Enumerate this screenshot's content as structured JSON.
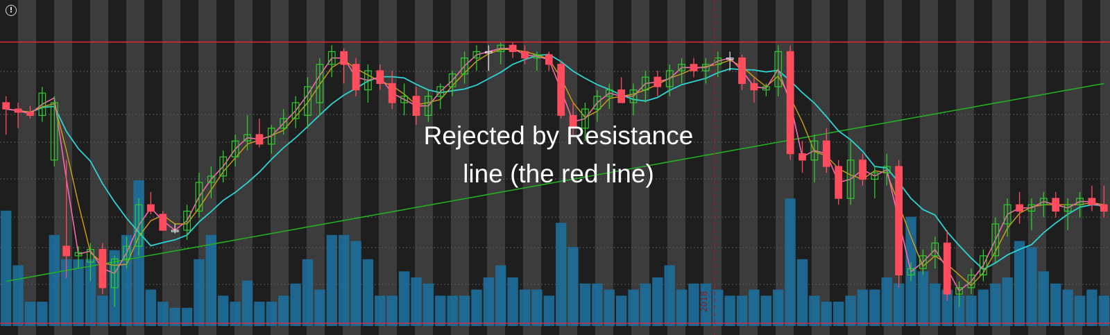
{
  "annotation": {
    "line1": "Rejected by Resistance",
    "line2": "line (the red line)"
  },
  "alert_icon": "!",
  "date_marker": "2018",
  "colors": {
    "up_candle": "#2ecc2e",
    "down_candle": "#ff4d5e",
    "neutral_candle": "#d9d9d9",
    "volume": "#1c6e9c",
    "resistance": "#e0283c",
    "ma_cyan": "#2fd4d4",
    "ma_green": "#23b023",
    "ma_pink": "#ff66aa",
    "ma_violet": "#c46ad4",
    "ma_gold": "#d4a017",
    "stripe_dark": "#1e1e1e",
    "stripe_light": "#3c3c3c"
  },
  "chart_data": {
    "type": "candlestick",
    "title": "",
    "xlabel": "",
    "ylabel": "",
    "ylim": [
      0,
      100
    ],
    "grid": true,
    "resistance_level": 89,
    "candles": [
      [
        70,
        72,
        60,
        68
      ],
      [
        68,
        70,
        62,
        67
      ],
      [
        67,
        69,
        65,
        66
      ],
      [
        66,
        75,
        64,
        73
      ],
      [
        52,
        72,
        50,
        70
      ],
      [
        25,
        52,
        15,
        22
      ],
      [
        22,
        25,
        18,
        23
      ],
      [
        20,
        26,
        14,
        24
      ],
      [
        24,
        26,
        10,
        12
      ],
      [
        12,
        22,
        6,
        21
      ],
      [
        21,
        28,
        18,
        25
      ],
      [
        25,
        40,
        22,
        38
      ],
      [
        38,
        42,
        35,
        36
      ],
      [
        35,
        36,
        30,
        30
      ],
      [
        30,
        32,
        29,
        30
      ],
      [
        30,
        38,
        27,
        36
      ],
      [
        36,
        48,
        34,
        45
      ],
      [
        45,
        50,
        40,
        47
      ],
      [
        47,
        55,
        45,
        53
      ],
      [
        53,
        60,
        50,
        58
      ],
      [
        58,
        66,
        55,
        60
      ],
      [
        60,
        65,
        56,
        57
      ],
      [
        57,
        63,
        54,
        62
      ],
      [
        62,
        68,
        60,
        65
      ],
      [
        65,
        72,
        62,
        70
      ],
      [
        66,
        78,
        62,
        75
      ],
      [
        70,
        84,
        66,
        82
      ],
      [
        82,
        88,
        78,
        86
      ],
      [
        86,
        87,
        76,
        82
      ],
      [
        82,
        84,
        72,
        74
      ],
      [
        74,
        82,
        70,
        80
      ],
      [
        80,
        82,
        74,
        76
      ],
      [
        76,
        80,
        68,
        70
      ],
      [
        70,
        76,
        66,
        72
      ],
      [
        72,
        75,
        63,
        66
      ],
      [
        66,
        74,
        64,
        72
      ],
      [
        72,
        76,
        68,
        75
      ],
      [
        75,
        80,
        72,
        79
      ],
      [
        79,
        86,
        76,
        84
      ],
      [
        84,
        88,
        80,
        86
      ],
      [
        86,
        88,
        80,
        86
      ],
      [
        86,
        89,
        82,
        88
      ],
      [
        88,
        89,
        84,
        86
      ],
      [
        86,
        88,
        82,
        84
      ],
      [
        84,
        86,
        80,
        85
      ],
      [
        85,
        86,
        80,
        82
      ],
      [
        82,
        83,
        65,
        66
      ],
      [
        66,
        70,
        60,
        62
      ],
      [
        62,
        70,
        58,
        68
      ],
      [
        68,
        74,
        64,
        72
      ],
      [
        72,
        76,
        68,
        74
      ],
      [
        74,
        78,
        70,
        70
      ],
      [
        70,
        76,
        66,
        74
      ],
      [
        74,
        80,
        70,
        78
      ],
      [
        78,
        80,
        72,
        75
      ],
      [
        75,
        82,
        72,
        80
      ],
      [
        80,
        84,
        76,
        82
      ],
      [
        82,
        84,
        78,
        80
      ],
      [
        80,
        84,
        76,
        82
      ],
      [
        82,
        86,
        78,
        84
      ],
      [
        84,
        86,
        80,
        84
      ],
      [
        84,
        85,
        74,
        76
      ],
      [
        76,
        78,
        70,
        74
      ],
      [
        74,
        76,
        72,
        75
      ],
      [
        75,
        88,
        72,
        86
      ],
      [
        86,
        88,
        52,
        54
      ],
      [
        54,
        58,
        48,
        52
      ],
      [
        52,
        60,
        45,
        58
      ],
      [
        58,
        62,
        48,
        50
      ],
      [
        50,
        52,
        38,
        40
      ],
      [
        40,
        58,
        38,
        52
      ],
      [
        52,
        54,
        44,
        46
      ],
      [
        46,
        50,
        40,
        48
      ],
      [
        48,
        54,
        44,
        50
      ],
      [
        50,
        52,
        12,
        16
      ],
      [
        16,
        20,
        14,
        18
      ],
      [
        18,
        24,
        16,
        22
      ],
      [
        22,
        28,
        18,
        26
      ],
      [
        26,
        30,
        8,
        10
      ],
      [
        10,
        14,
        6,
        12
      ],
      [
        12,
        18,
        10,
        16
      ],
      [
        16,
        24,
        14,
        22
      ],
      [
        22,
        34,
        20,
        32
      ],
      [
        32,
        40,
        28,
        38
      ],
      [
        38,
        42,
        32,
        36
      ],
      [
        36,
        40,
        30,
        38
      ],
      [
        38,
        42,
        34,
        40
      ],
      [
        40,
        42,
        34,
        36
      ],
      [
        36,
        40,
        30,
        38
      ],
      [
        38,
        42,
        34,
        40
      ],
      [
        40,
        44,
        36,
        38
      ],
      [
        38,
        44,
        34,
        36
      ]
    ],
    "volume": [
      38,
      20,
      8,
      8,
      30,
      22,
      22,
      22,
      10,
      25,
      30,
      48,
      12,
      8,
      6,
      6,
      22,
      30,
      10,
      8,
      15,
      8,
      8,
      10,
      14,
      22,
      12,
      30,
      30,
      28,
      22,
      10,
      10,
      18,
      16,
      14,
      10,
      10,
      10,
      12,
      16,
      20,
      16,
      12,
      12,
      10,
      34,
      26,
      14,
      14,
      12,
      10,
      12,
      14,
      16,
      20,
      12,
      14,
      14,
      12,
      10,
      10,
      12,
      10,
      12,
      42,
      22,
      10,
      8,
      8,
      10,
      12,
      12,
      16,
      14,
      36,
      18,
      14,
      12,
      10,
      10,
      12,
      14,
      16,
      28,
      26,
      18,
      14,
      12,
      10,
      12,
      10
    ]
  }
}
